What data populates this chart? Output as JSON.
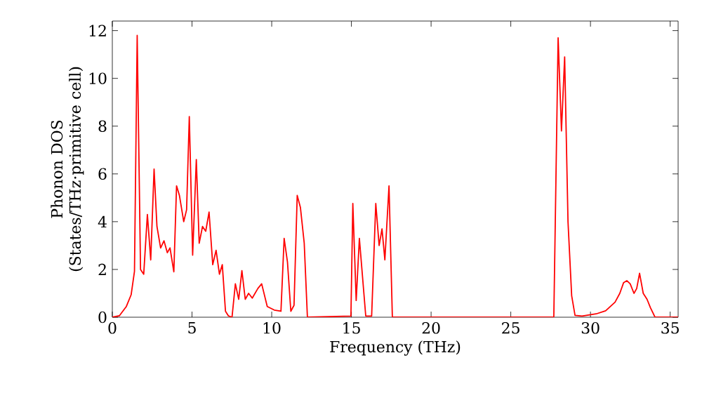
{
  "chart_data": {
    "type": "line",
    "xlabel": "Frequency (THz)",
    "ylabel": "Phonon DOS (States/THz·primitive cell)",
    "xlim": [
      0,
      35.5
    ],
    "ylim": [
      0,
      12.4
    ],
    "xticks": [
      0,
      5,
      10,
      15,
      20,
      25,
      30,
      35
    ],
    "yticks": [
      0,
      2,
      4,
      6,
      8,
      10,
      12
    ],
    "series": [
      {
        "color": "#ff0000",
        "x": [
          0,
          0.44,
          0.88,
          1.18,
          1.39,
          1.56,
          1.77,
          1.97,
          2.2,
          2.41,
          2.62,
          2.8,
          3.03,
          3.24,
          3.45,
          3.62,
          3.86,
          4.03,
          4.21,
          4.48,
          4.66,
          4.83,
          5.04,
          5.27,
          5.45,
          5.66,
          5.86,
          6.07,
          6.3,
          6.51,
          6.72,
          6.9,
          7.1,
          7.28,
          7.51,
          7.72,
          7.93,
          8.13,
          8.34,
          8.55,
          8.78,
          9.13,
          9.37,
          9.72,
          10.16,
          10.58,
          10.78,
          10.99,
          11.2,
          11.4,
          11.6,
          11.8,
          12.04,
          12.24,
          14.97,
          15.09,
          15.3,
          15.5,
          15.9,
          16.27,
          16.53,
          16.74,
          16.92,
          17.1,
          17.36,
          17.57,
          27.7,
          27.97,
          28.18,
          28.38,
          28.59,
          28.82,
          29.03,
          29.47,
          30.36,
          30.95,
          31.54,
          31.84,
          32.08,
          32.28,
          32.49,
          32.73,
          32.9,
          33.08,
          33.31,
          33.55,
          33.76,
          34.05,
          35.5
        ],
        "values": [
          0,
          0.06,
          0.45,
          0.94,
          1.92,
          11.8,
          2.0,
          1.8,
          4.3,
          2.4,
          6.2,
          3.8,
          2.9,
          3.2,
          2.7,
          2.9,
          1.9,
          5.5,
          5.1,
          4.0,
          4.5,
          8.4,
          2.6,
          6.6,
          3.1,
          3.8,
          3.6,
          4.4,
          2.2,
          2.8,
          1.8,
          2.2,
          0.25,
          0.06,
          0,
          1.4,
          0.75,
          1.95,
          0.75,
          1.0,
          0.8,
          1.2,
          1.4,
          0.45,
          0.3,
          0.25,
          3.3,
          2.3,
          0.25,
          0.5,
          5.1,
          4.6,
          3.1,
          0,
          0.05,
          4.76,
          0.7,
          3.3,
          0.05,
          0.05,
          4.76,
          3.0,
          3.7,
          2.4,
          5.5,
          0,
          0,
          11.7,
          7.8,
          10.9,
          4.0,
          0.9,
          0.08,
          0.05,
          0.14,
          0.27,
          0.63,
          1.0,
          1.45,
          1.53,
          1.4,
          1.0,
          1.2,
          1.84,
          1.0,
          0.75,
          0.4,
          0,
          0
        ]
      }
    ]
  }
}
